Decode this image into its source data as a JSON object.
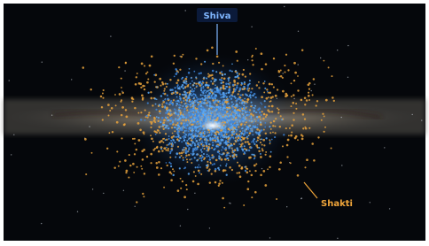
{
  "annotations": [
    {
      "label": "Shiva"
    },
    {
      "label": "Shakti"
    }
  ]
}
